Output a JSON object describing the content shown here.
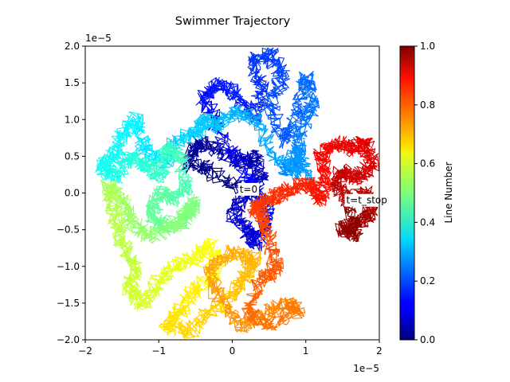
{
  "chart_data": {
    "type": "line",
    "title": "Swimmer Trajectory",
    "x_offset_text": "1e−5",
    "y_offset_text": "1e−5",
    "xlim": [
      -2,
      2
    ],
    "ylim": [
      -2,
      2
    ],
    "x_ticks": [
      -2,
      -1,
      0,
      1,
      2
    ],
    "x_tick_labels": [
      "−2",
      "−1",
      "0",
      "1",
      "2"
    ],
    "y_ticks": [
      -2.0,
      -1.5,
      -1.0,
      -0.5,
      0.0,
      0.5,
      1.0,
      1.5,
      2.0
    ],
    "y_tick_labels": [
      "−2.0",
      "−1.5",
      "−1.0",
      "−0.5",
      "0.0",
      "0.5",
      "1.0",
      "1.5",
      "2.0"
    ],
    "colormap": "jet",
    "colorbar": {
      "label": "Line Number",
      "range": [
        0,
        1
      ],
      "ticks": [
        0.0,
        0.2,
        0.4,
        0.6,
        0.8,
        1.0
      ],
      "tick_labels": [
        "0.0",
        "0.2",
        "0.4",
        "0.6",
        "0.8",
        "1.0"
      ]
    },
    "annotations": [
      {
        "text": "t=0",
        "x": 0.1,
        "y": 0.05
      },
      {
        "text": "t=t_stop",
        "x": 1.55,
        "y": -0.1
      }
    ],
    "path": [
      [
        0.1,
        0.05
      ],
      [
        -0.3,
        0.3
      ],
      [
        -0.6,
        0.4
      ],
      [
        -0.5,
        0.7
      ],
      [
        -0.2,
        0.6
      ],
      [
        0.1,
        0.4
      ],
      [
        0.3,
        0.5
      ],
      [
        0.4,
        0.2
      ],
      [
        0.2,
        0.0
      ],
      [
        0.0,
        -0.3
      ],
      [
        0.2,
        -0.5
      ],
      [
        0.3,
        -0.7
      ],
      [
        0.5,
        -0.4
      ],
      [
        0.4,
        -0.1
      ],
      [
        0.2,
        0.2
      ],
      [
        -0.2,
        0.9
      ],
      [
        -0.4,
        1.3
      ],
      [
        -0.2,
        1.5
      ],
      [
        0.1,
        1.3
      ],
      [
        0.3,
        1.0
      ],
      [
        0.4,
        1.4
      ],
      [
        0.3,
        1.8
      ],
      [
        0.5,
        1.9
      ],
      [
        0.7,
        1.6
      ],
      [
        0.5,
        1.2
      ],
      [
        0.7,
        0.7
      ],
      [
        0.9,
        1.1
      ],
      [
        1.0,
        1.6
      ],
      [
        1.1,
        1.2
      ],
      [
        0.9,
        0.8
      ],
      [
        0.9,
        0.4
      ],
      [
        0.7,
        0.3
      ],
      [
        0.9,
        0.6
      ],
      [
        1.0,
        0.2
      ],
      [
        0.6,
        0.5
      ],
      [
        0.3,
        1.0
      ],
      [
        0.0,
        1.1
      ],
      [
        -0.2,
        0.9
      ],
      [
        -0.4,
        1.0
      ],
      [
        -0.5,
        0.8
      ],
      [
        -0.8,
        0.7
      ],
      [
        -0.9,
        0.4
      ],
      [
        -1.2,
        0.6
      ],
      [
        -1.3,
        1.0
      ],
      [
        -1.5,
        0.8
      ],
      [
        -1.6,
        0.5
      ],
      [
        -1.8,
        0.4
      ],
      [
        -1.6,
        0.2
      ],
      [
        -1.4,
        0.5
      ],
      [
        -1.2,
        0.4
      ],
      [
        -1.0,
        0.2
      ],
      [
        -0.9,
        0.6
      ],
      [
        -0.7,
        0.5
      ],
      [
        -0.6,
        0.1
      ],
      [
        -0.8,
        -0.1
      ],
      [
        -1.0,
        0.0
      ],
      [
        -1.1,
        -0.3
      ],
      [
        -0.9,
        -0.5
      ],
      [
        -0.6,
        -0.3
      ],
      [
        -0.5,
        -0.1
      ],
      [
        -0.7,
        -0.4
      ],
      [
        -1.1,
        -0.6
      ],
      [
        -1.4,
        -0.4
      ],
      [
        -1.5,
        -0.1
      ],
      [
        -1.7,
        0.1
      ],
      [
        -1.6,
        -0.3
      ],
      [
        -1.5,
        -0.7
      ],
      [
        -1.3,
        -1.0
      ],
      [
        -1.4,
        -1.3
      ],
      [
        -1.2,
        -1.5
      ],
      [
        -1.0,
        -1.2
      ],
      [
        -0.8,
        -1.0
      ],
      [
        -0.5,
        -0.9
      ],
      [
        -0.3,
        -0.7
      ],
      [
        -0.2,
        -1.1
      ],
      [
        -0.5,
        -1.3
      ],
      [
        -0.7,
        -1.6
      ],
      [
        -0.9,
        -1.8
      ],
      [
        -0.6,
        -1.9
      ],
      [
        -0.3,
        -1.6
      ],
      [
        0.0,
        -1.4
      ],
      [
        0.2,
        -1.1
      ],
      [
        0.3,
        -0.9
      ],
      [
        0.0,
        -0.8
      ],
      [
        -0.3,
        -1.0
      ],
      [
        -0.2,
        -1.4
      ],
      [
        0.1,
        -1.8
      ],
      [
        0.4,
        -1.7
      ],
      [
        0.7,
        -1.5
      ],
      [
        0.9,
        -1.6
      ],
      [
        0.5,
        -1.8
      ],
      [
        0.2,
        -1.6
      ],
      [
        0.4,
        -1.2
      ],
      [
        0.6,
        -1.0
      ],
      [
        0.5,
        -0.6
      ],
      [
        0.4,
        -0.3
      ],
      [
        0.3,
        -0.2
      ],
      [
        0.5,
        -0.1
      ],
      [
        0.7,
        0.0
      ],
      [
        0.9,
        0.1
      ],
      [
        1.1,
        0.1
      ],
      [
        1.2,
        -0.1
      ],
      [
        1.3,
        0.2
      ],
      [
        1.2,
        0.5
      ],
      [
        1.4,
        0.7
      ],
      [
        1.6,
        0.6
      ],
      [
        1.8,
        0.7
      ],
      [
        1.9,
        0.4
      ],
      [
        1.7,
        0.2
      ],
      [
        1.5,
        0.3
      ],
      [
        1.4,
        0.1
      ],
      [
        1.6,
        -0.1
      ],
      [
        1.8,
        0.0
      ],
      [
        1.9,
        -0.3
      ],
      [
        1.7,
        -0.4
      ],
      [
        1.5,
        -0.5
      ],
      [
        1.7,
        -0.6
      ],
      [
        1.55,
        -0.1
      ]
    ]
  }
}
